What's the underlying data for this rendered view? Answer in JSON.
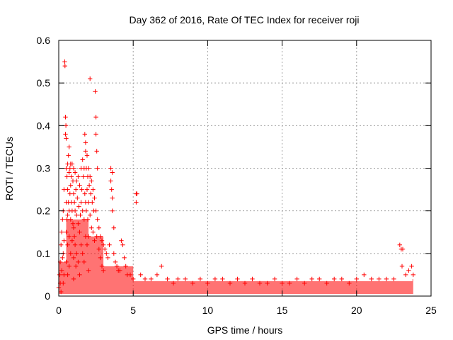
{
  "chart_data": {
    "type": "scatter",
    "title": "Day 362 of 2016, Rate Of TEC Index for receiver roji",
    "xlabel": "GPS time / hours",
    "ylabel": "ROTI / TECUs",
    "xlim": [
      0,
      25
    ],
    "ylim": [
      0,
      0.6
    ],
    "xticks": [
      0,
      5,
      10,
      15,
      20,
      25
    ],
    "yticks": [
      0,
      0.1,
      0.2,
      0.3,
      0.4,
      0.5,
      0.6
    ],
    "xtick_labels": [
      "0",
      "5",
      "10",
      "15",
      "20",
      "25"
    ],
    "ytick_labels": [
      "0",
      "0.1",
      "0.2",
      "0.3",
      "0.4",
      "0.5",
      "0.6"
    ],
    "grid": true,
    "marker": "+",
    "color": "#ff0000",
    "series": [
      {
        "name": "ROTI",
        "points": [
          [
            0.0,
            0.02
          ],
          [
            0.05,
            0.05
          ],
          [
            0.1,
            0.08
          ],
          [
            0.1,
            0.03
          ],
          [
            0.15,
            0.12
          ],
          [
            0.15,
            0.01
          ],
          [
            0.2,
            0.15
          ],
          [
            0.2,
            0.06
          ],
          [
            0.25,
            0.18
          ],
          [
            0.25,
            0.09
          ],
          [
            0.3,
            0.2
          ],
          [
            0.3,
            0.1
          ],
          [
            0.3,
            0.03
          ],
          [
            0.35,
            0.25
          ],
          [
            0.35,
            0.13
          ],
          [
            0.35,
            0.05
          ],
          [
            0.4,
            0.55
          ],
          [
            0.42,
            0.54
          ],
          [
            0.45,
            0.42
          ],
          [
            0.45,
            0.38
          ],
          [
            0.48,
            0.4
          ],
          [
            0.5,
            0.37
          ],
          [
            0.5,
            0.3
          ],
          [
            0.5,
            0.22
          ],
          [
            0.5,
            0.15
          ],
          [
            0.5,
            0.08
          ],
          [
            0.55,
            0.28
          ],
          [
            0.55,
            0.18
          ],
          [
            0.6,
            0.31
          ],
          [
            0.6,
            0.25
          ],
          [
            0.6,
            0.19
          ],
          [
            0.6,
            0.12
          ],
          [
            0.6,
            0.05
          ],
          [
            0.65,
            0.33
          ],
          [
            0.65,
            0.22
          ],
          [
            0.7,
            0.35
          ],
          [
            0.7,
            0.29
          ],
          [
            0.7,
            0.2
          ],
          [
            0.7,
            0.14
          ],
          [
            0.7,
            0.07
          ],
          [
            0.75,
            0.3
          ],
          [
            0.75,
            0.24
          ],
          [
            0.8,
            0.31
          ],
          [
            0.8,
            0.26
          ],
          [
            0.8,
            0.18
          ],
          [
            0.8,
            0.1
          ],
          [
            0.85,
            0.28
          ],
          [
            0.85,
            0.22
          ],
          [
            0.9,
            0.31
          ],
          [
            0.9,
            0.2
          ],
          [
            0.9,
            0.13
          ],
          [
            0.95,
            0.27
          ],
          [
            0.95,
            0.17
          ],
          [
            1.0,
            0.3
          ],
          [
            1.0,
            0.24
          ],
          [
            1.0,
            0.16
          ],
          [
            1.0,
            0.09
          ],
          [
            1.0,
            0.04
          ],
          [
            1.05,
            0.22
          ],
          [
            1.05,
            0.14
          ],
          [
            1.1,
            0.29
          ],
          [
            1.1,
            0.2
          ],
          [
            1.1,
            0.12
          ],
          [
            1.15,
            0.25
          ],
          [
            1.15,
            0.07
          ],
          [
            1.2,
            0.27
          ],
          [
            1.2,
            0.19
          ],
          [
            1.2,
            0.1
          ],
          [
            1.25,
            0.23
          ],
          [
            1.3,
            0.28
          ],
          [
            1.3,
            0.17
          ],
          [
            1.3,
            0.08
          ],
          [
            1.35,
            0.21
          ],
          [
            1.4,
            0.26
          ],
          [
            1.4,
            0.15
          ],
          [
            1.4,
            0.05
          ],
          [
            1.45,
            0.19
          ],
          [
            1.5,
            0.3
          ],
          [
            1.5,
            0.22
          ],
          [
            1.5,
            0.12
          ],
          [
            1.55,
            0.25
          ],
          [
            1.6,
            0.32
          ],
          [
            1.6,
            0.2
          ],
          [
            1.6,
            0.1
          ],
          [
            1.65,
            0.28
          ],
          [
            1.7,
            0.3
          ],
          [
            1.7,
            0.18
          ],
          [
            1.7,
            0.08
          ],
          [
            1.75,
            0.38
          ],
          [
            1.75,
            0.24
          ],
          [
            1.8,
            0.36
          ],
          [
            1.8,
            0.34
          ],
          [
            1.8,
            0.22
          ],
          [
            1.8,
            0.14
          ],
          [
            1.85,
            0.3
          ],
          [
            1.85,
            0.2
          ],
          [
            1.9,
            0.33
          ],
          [
            1.9,
            0.25
          ],
          [
            1.9,
            0.12
          ],
          [
            1.95,
            0.28
          ],
          [
            1.95,
            0.18
          ],
          [
            2.0,
            0.3
          ],
          [
            2.0,
            0.22
          ],
          [
            2.0,
            0.14
          ],
          [
            2.0,
            0.06
          ],
          [
            2.05,
            0.26
          ],
          [
            2.1,
            0.51
          ],
          [
            2.1,
            0.28
          ],
          [
            2.1,
            0.19
          ],
          [
            2.15,
            0.24
          ],
          [
            2.2,
            0.27
          ],
          [
            2.2,
            0.16
          ],
          [
            2.25,
            0.22
          ],
          [
            2.3,
            0.25
          ],
          [
            2.3,
            0.15
          ],
          [
            2.35,
            0.2
          ],
          [
            2.4,
            0.23
          ],
          [
            2.4,
            0.13
          ],
          [
            2.45,
            0.48
          ],
          [
            2.5,
            0.42
          ],
          [
            2.5,
            0.38
          ],
          [
            2.5,
            0.2
          ],
          [
            2.55,
            0.34
          ],
          [
            2.55,
            0.14
          ],
          [
            2.6,
            0.3
          ],
          [
            2.6,
            0.18
          ],
          [
            2.7,
            0.16
          ],
          [
            2.7,
            0.11
          ],
          [
            2.8,
            0.14
          ],
          [
            2.8,
            0.09
          ],
          [
            2.9,
            0.13
          ],
          [
            2.9,
            0.07
          ],
          [
            3.0,
            0.12
          ],
          [
            3.0,
            0.06
          ],
          [
            3.1,
            0.11
          ],
          [
            3.2,
            0.1
          ],
          [
            3.3,
            0.09
          ],
          [
            3.4,
            0.12
          ],
          [
            3.5,
            0.3
          ],
          [
            3.5,
            0.27
          ],
          [
            3.55,
            0.25
          ],
          [
            3.6,
            0.29
          ],
          [
            3.6,
            0.23
          ],
          [
            3.6,
            0.2
          ],
          [
            3.7,
            0.16
          ],
          [
            3.7,
            0.1
          ],
          [
            3.8,
            0.08
          ],
          [
            3.9,
            0.07
          ],
          [
            4.0,
            0.06
          ],
          [
            4.1,
            0.06
          ],
          [
            4.2,
            0.13
          ],
          [
            4.3,
            0.12
          ],
          [
            4.4,
            0.09
          ],
          [
            4.5,
            0.07
          ],
          [
            4.6,
            0.05
          ],
          [
            4.8,
            0.05
          ],
          [
            5.0,
            0.04
          ],
          [
            5.2,
            0.24
          ],
          [
            5.25,
            0.24
          ],
          [
            5.2,
            0.22
          ],
          [
            5.5,
            0.05
          ],
          [
            5.8,
            0.04
          ],
          [
            6.2,
            0.04
          ],
          [
            6.6,
            0.05
          ],
          [
            6.9,
            0.07
          ],
          [
            7.3,
            0.04
          ],
          [
            7.7,
            0.03
          ],
          [
            8.0,
            0.04
          ],
          [
            8.5,
            0.04
          ],
          [
            9.0,
            0.03
          ],
          [
            9.5,
            0.04
          ],
          [
            10.0,
            0.03
          ],
          [
            10.5,
            0.04
          ],
          [
            11.0,
            0.04
          ],
          [
            11.5,
            0.03
          ],
          [
            12.0,
            0.04
          ],
          [
            12.5,
            0.03
          ],
          [
            13.0,
            0.04
          ],
          [
            13.5,
            0.03
          ],
          [
            14.0,
            0.03
          ],
          [
            14.5,
            0.04
          ],
          [
            15.0,
            0.03
          ],
          [
            15.5,
            0.03
          ],
          [
            16.0,
            0.04
          ],
          [
            16.5,
            0.03
          ],
          [
            17.0,
            0.04
          ],
          [
            17.5,
            0.04
          ],
          [
            18.0,
            0.03
          ],
          [
            18.5,
            0.04
          ],
          [
            19.0,
            0.04
          ],
          [
            19.5,
            0.03
          ],
          [
            20.0,
            0.04
          ],
          [
            20.5,
            0.05
          ],
          [
            21.0,
            0.04
          ],
          [
            21.5,
            0.04
          ],
          [
            22.0,
            0.04
          ],
          [
            22.5,
            0.04
          ],
          [
            22.9,
            0.12
          ],
          [
            23.0,
            0.11
          ],
          [
            23.1,
            0.11
          ],
          [
            23.05,
            0.07
          ],
          [
            23.3,
            0.05
          ],
          [
            23.5,
            0.06
          ],
          [
            23.7,
            0.07
          ],
          [
            23.8,
            0.05
          ]
        ]
      }
    ]
  }
}
